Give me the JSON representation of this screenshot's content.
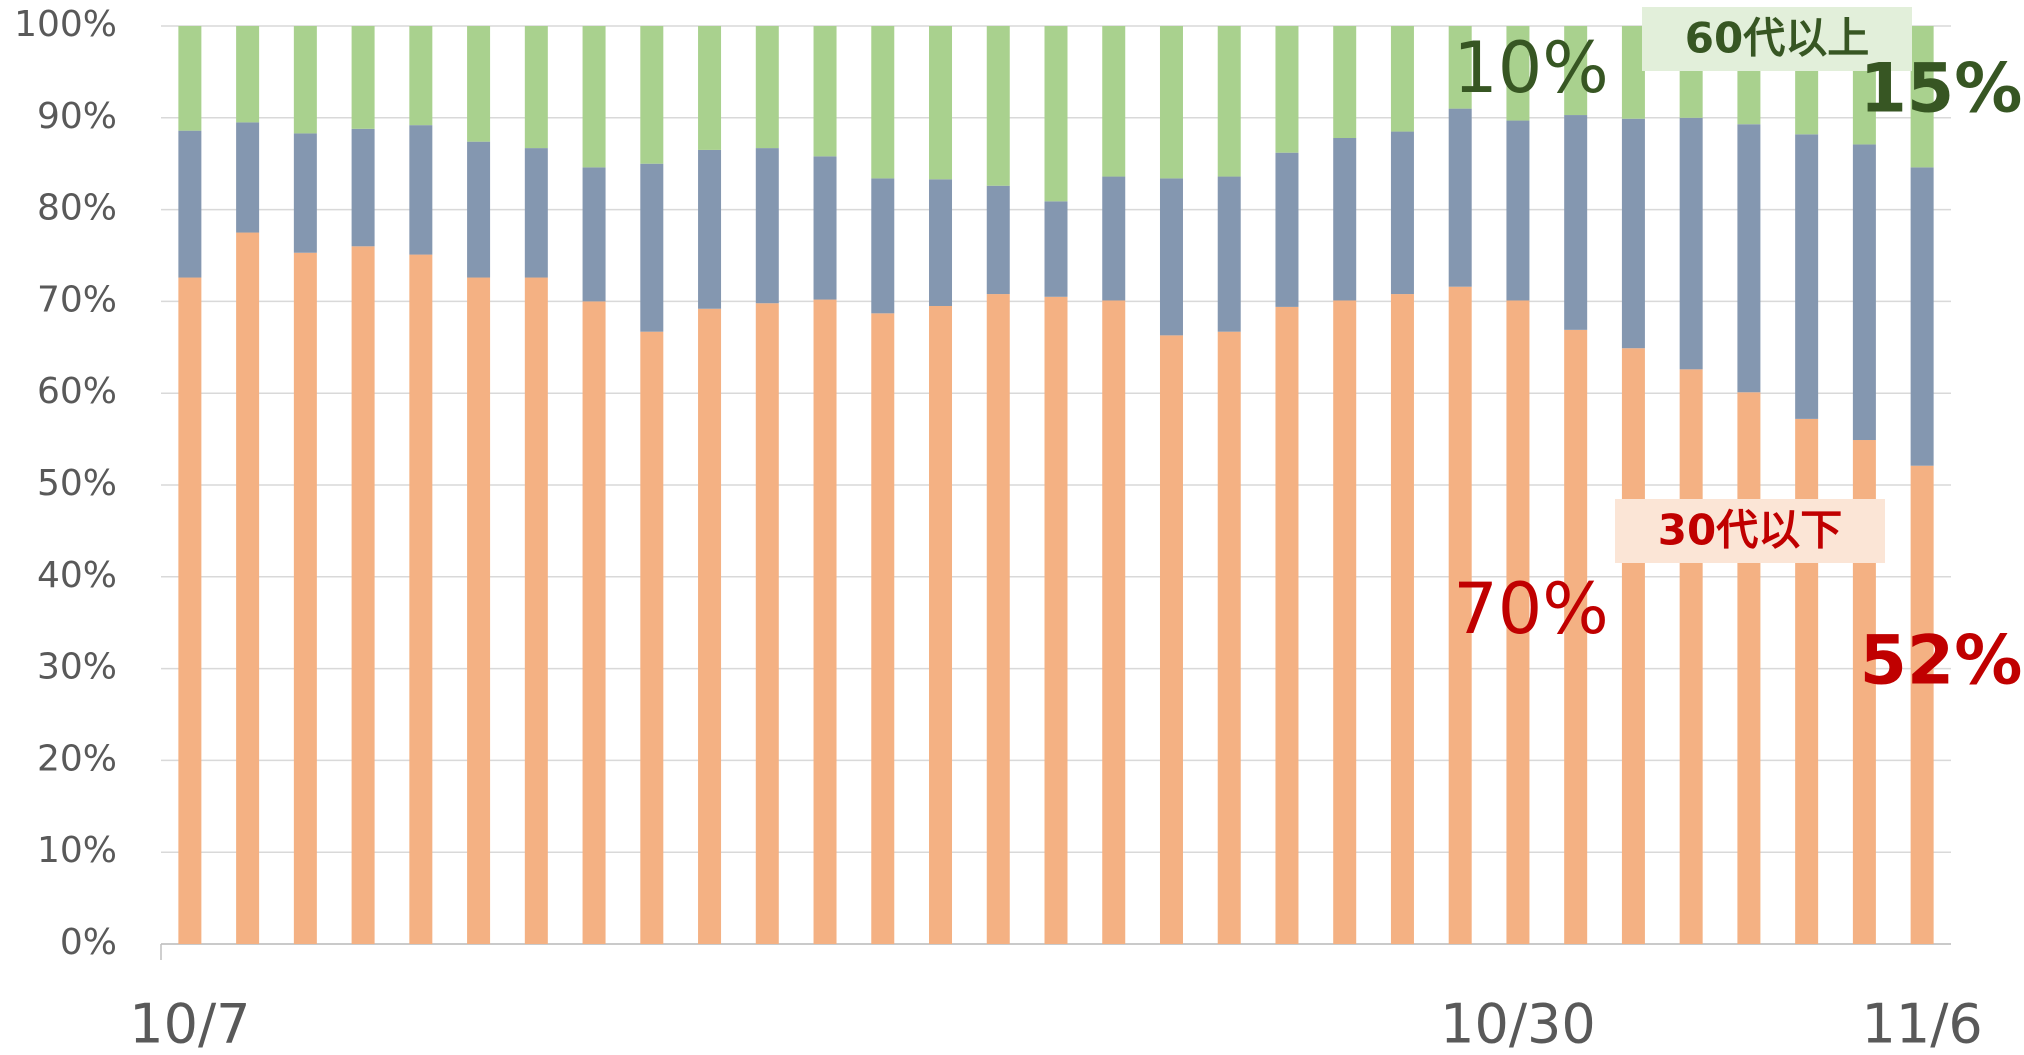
{
  "chart_data": {
    "type": "stacked_bar",
    "categories": [
      "10/7",
      null,
      null,
      null,
      null,
      null,
      null,
      null,
      null,
      null,
      null,
      null,
      null,
      null,
      null,
      null,
      null,
      null,
      null,
      null,
      null,
      null,
      null,
      "10/30",
      null,
      null,
      null,
      null,
      null,
      null,
      "11/6"
    ],
    "series": [
      {
        "name": "30代以下",
        "color": "#f4b183",
        "label_color": "#c00000",
        "label_background": "#fbe5d6",
        "values": [
          72.6,
          77.5,
          75.3,
          76.0,
          75.1,
          72.6,
          72.6,
          70.0,
          66.7,
          69.2,
          69.8,
          70.2,
          68.7,
          69.5,
          70.8,
          70.5,
          70.1,
          66.3,
          66.7,
          69.4,
          70.1,
          70.8,
          71.6,
          70.1,
          66.9,
          64.9,
          62.6,
          60.1,
          57.2,
          54.9,
          52.1
        ]
      },
      {
        "color": "#8497b0",
        "values": [
          16.0,
          12.0,
          13.0,
          12.8,
          14.1,
          14.8,
          14.1,
          14.6,
          18.3,
          17.3,
          16.9,
          15.6,
          14.7,
          13.8,
          11.8,
          10.4,
          13.5,
          17.1,
          16.9,
          16.8,
          17.7,
          17.7,
          19.4,
          19.6,
          23.4,
          25.0,
          27.4,
          29.2,
          31.0,
          32.2,
          32.5
        ]
      },
      {
        "name": "60代以上",
        "color": "#a9d18e",
        "label_color": "#375623",
        "label_background": "#e2efda",
        "values": [
          11.4,
          10.5,
          11.7,
          11.2,
          10.8,
          12.6,
          13.3,
          15.4,
          15.0,
          13.5,
          13.3,
          14.2,
          16.6,
          16.7,
          17.4,
          19.1,
          16.4,
          16.6,
          16.4,
          13.8,
          12.2,
          11.5,
          9.0,
          10.3,
          9.7,
          10.1,
          10.0,
          10.7,
          11.8,
          12.9,
          15.4
        ]
      }
    ],
    "annotations": [
      {
        "text": "10%",
        "color": "#375623"
      },
      {
        "text": "15%",
        "color": "#375623",
        "bold": true
      },
      {
        "text": "70%",
        "color": "#c00000"
      },
      {
        "text": "52%",
        "color": "#c00000",
        "bold": true
      }
    ],
    "ylim": [
      0,
      100
    ],
    "yticks": [
      {
        "value": 0,
        "label": "0%"
      },
      {
        "value": 10,
        "label": "10%"
      },
      {
        "value": 20,
        "label": "20%"
      },
      {
        "value": 30,
        "label": "30%"
      },
      {
        "value": 40,
        "label": "40%"
      },
      {
        "value": 50,
        "label": "50%"
      },
      {
        "value": 60,
        "label": "60%"
      },
      {
        "value": 70,
        "label": "70%"
      },
      {
        "value": 80,
        "label": "80%"
      },
      {
        "value": 90,
        "label": "90%"
      },
      {
        "value": 100,
        "label": "100%"
      }
    ],
    "grid": true
  }
}
